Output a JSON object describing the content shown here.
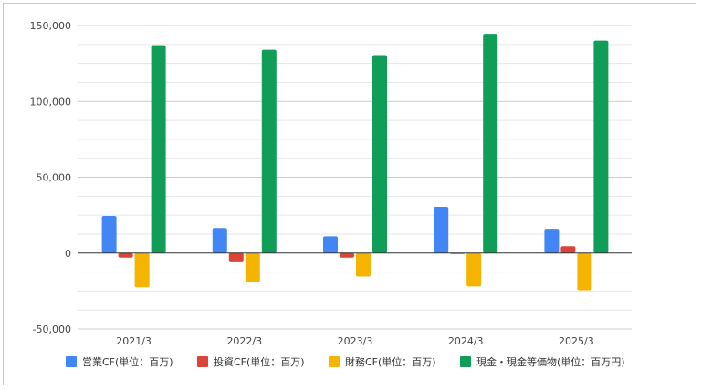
{
  "chart_data": {
    "type": "bar",
    "categories": [
      "2021/3",
      "2022/3",
      "2023/3",
      "2024/3",
      "2025/3"
    ],
    "series": [
      {
        "name": "営業CF(単位：百万)",
        "color": "#4285f4",
        "values": [
          24500,
          16500,
          11000,
          30500,
          16000
        ]
      },
      {
        "name": "投資CF(単位：百万)",
        "color": "#db4437",
        "values": [
          -3000,
          -5500,
          -3000,
          -500,
          4500
        ]
      },
      {
        "name": "財務CF(単位：百万)",
        "color": "#f4b400",
        "values": [
          -22500,
          -19000,
          -15500,
          -22000,
          -24500
        ]
      },
      {
        "name": "現金・現金等価物(単位：百万円)",
        "color": "#0f9d58",
        "values": [
          137000,
          134000,
          130500,
          144500,
          140000
        ]
      }
    ],
    "ylim": [
      -50000,
      150000
    ],
    "yticks": [
      "150,000",
      "100,000",
      "50,000",
      "0",
      "-50,000"
    ],
    "ytick_values": [
      150000,
      100000,
      50000,
      0,
      -50000
    ],
    "grid": true,
    "legend": "bottom"
  }
}
